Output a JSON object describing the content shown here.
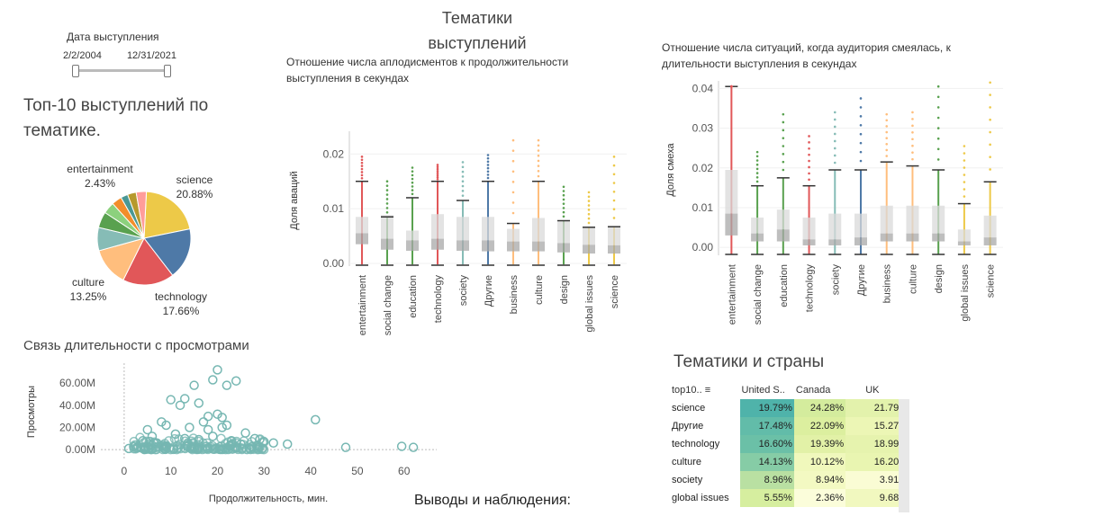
{
  "header": {
    "title": "Тематики выступлений"
  },
  "date_filter": {
    "title": "Дата выступления",
    "from": "2/2/2004",
    "to": "12/31/2021"
  },
  "pie": {
    "title": "Топ-10 выступлений по тематике.",
    "labels": [
      {
        "name": "entertainment",
        "pct": "2.43%"
      },
      {
        "name": "science",
        "pct": "20.88%"
      },
      {
        "name": "culture",
        "pct": "13.25%"
      },
      {
        "name": "technology",
        "pct": "17.66%"
      }
    ],
    "chart_data": {
      "type": "pie",
      "slices": [
        {
          "label": "science",
          "value": 20.88,
          "color": "#EDC948"
        },
        {
          "label": "Другие",
          "value": 17.66,
          "color": "#4E79A7"
        },
        {
          "label": "technology",
          "value": 17.66,
          "color": "#E15759"
        },
        {
          "label": "culture",
          "value": 13.25,
          "color": "#FFBE7D"
        },
        {
          "label": "society",
          "value": 8.0,
          "color": "#86BCB6"
        },
        {
          "label": "global issues",
          "value": 5.5,
          "color": "#59A14F"
        },
        {
          "label": "education",
          "value": 4.0,
          "color": "#8CD17D"
        },
        {
          "label": "design",
          "value": 3.5,
          "color": "#F28E2B"
        },
        {
          "label": "entertainment",
          "value": 2.43,
          "color": "#499894"
        },
        {
          "label": "business",
          "value": 3.0,
          "color": "#B6992D"
        },
        {
          "label": "social change",
          "value": 3.5,
          "color": "#FF9D9A"
        }
      ]
    }
  },
  "applause": {
    "title": "Отношение числа аплодисментов к продолжительности выступления в секундах",
    "ylabel": "Доля аваций",
    "chart_data": {
      "type": "box",
      "yticks": [
        "0.00",
        "0.01",
        "0.02"
      ],
      "ylim": [
        -0.0005,
        0.0235
      ],
      "categories": [
        "entertainment",
        "social change",
        "education",
        "technology",
        "society",
        "Другие",
        "business",
        "culture",
        "design",
        "global issues",
        "science"
      ],
      "colors": [
        "#E15759",
        "#59A14F",
        "#59A14F",
        "#E15759",
        "#86BCB6",
        "#4E79A7",
        "#FFBE7D",
        "#FFBE7D",
        "#59A14F",
        "#EDC948",
        "#EDC948"
      ],
      "q1": [
        0.0035,
        0.0025,
        0.0023,
        0.0025,
        0.0023,
        0.0022,
        0.0022,
        0.0022,
        0.002,
        0.0018,
        0.0018
      ],
      "median": [
        0.0055,
        0.0045,
        0.0042,
        0.0045,
        0.0042,
        0.0042,
        0.004,
        0.004,
        0.0037,
        0.0034,
        0.0033
      ],
      "q3": [
        0.0085,
        0.0088,
        0.006,
        0.009,
        0.0085,
        0.0085,
        0.0063,
        0.0083,
        0.0077,
        0.0065,
        0.0066
      ],
      "upper": [
        0.015,
        0.0085,
        0.012,
        0.015,
        0.0115,
        0.015,
        0.0073,
        0.015,
        0.0078,
        0.0066,
        0.0067
      ],
      "outmax": [
        0.0195,
        0.015,
        0.0175,
        0.018,
        0.0185,
        0.0198,
        0.0225,
        0.0225,
        0.014,
        0.013,
        0.0195
      ]
    }
  },
  "laughter": {
    "title": "Отношение числа ситуаций, когда аудитория смеялась, к длительности выступления в секундах",
    "ylabel": "Доля смеха",
    "chart_data": {
      "type": "box",
      "yticks": [
        "0.00",
        "0.01",
        "0.02",
        "0.03",
        "0.04"
      ],
      "ylim": [
        -0.002,
        0.041
      ],
      "categories": [
        "entertainment",
        "social change",
        "education",
        "technology",
        "society",
        "Другие",
        "business",
        "culture",
        "design",
        "global issues",
        "science"
      ],
      "colors": [
        "#E15759",
        "#59A14F",
        "#59A14F",
        "#E15759",
        "#86BCB6",
        "#4E79A7",
        "#FFBE7D",
        "#FFBE7D",
        "#59A14F",
        "#EDC948",
        "#EDC948"
      ],
      "q1": [
        0.003,
        0.0015,
        0.0015,
        0.0005,
        0.0005,
        0.0005,
        0.0015,
        0.0015,
        0.0015,
        0.0005,
        0.0005
      ],
      "median": [
        0.0085,
        0.0035,
        0.0045,
        0.002,
        0.002,
        0.0025,
        0.0035,
        0.0035,
        0.0035,
        0.0015,
        0.0025
      ],
      "q3": [
        0.0195,
        0.0075,
        0.0095,
        0.0075,
        0.0085,
        0.0085,
        0.0105,
        0.0105,
        0.0105,
        0.0045,
        0.008
      ],
      "upper": [
        0.0405,
        0.0155,
        0.0175,
        0.0155,
        0.0195,
        0.0195,
        0.0215,
        0.0205,
        0.0195,
        0.011,
        0.0165
      ],
      "outmax": [
        0.0405,
        0.024,
        0.0335,
        0.028,
        0.034,
        0.0375,
        0.0335,
        0.034,
        0.0405,
        0.0255,
        0.0415
      ]
    }
  },
  "scatter": {
    "title": "Связь длительности с просмотрами",
    "xlabel": "Продолжительность, мин.",
    "ylabel": "Просмотры",
    "chart_data": {
      "type": "scatter",
      "xticks": [
        0,
        10,
        20,
        30,
        40,
        50,
        60
      ],
      "yticks": [
        "0.00M",
        "20.00M",
        "40.00M",
        "60.00M"
      ],
      "xlim": [
        -5,
        67
      ],
      "ylim": [
        -8,
        78
      ],
      "points": [
        [
          20,
          72
        ],
        [
          19,
          63
        ],
        [
          15,
          58
        ],
        [
          10,
          45
        ],
        [
          13,
          46
        ],
        [
          12,
          40
        ],
        [
          22,
          58
        ],
        [
          24,
          62
        ],
        [
          16,
          42
        ],
        [
          18,
          30
        ],
        [
          8,
          25
        ],
        [
          20,
          32
        ],
        [
          21,
          29
        ],
        [
          41,
          27
        ],
        [
          35,
          5
        ],
        [
          30,
          7
        ],
        [
          47.5,
          2
        ],
        [
          59.5,
          3
        ],
        [
          62,
          2
        ],
        [
          5,
          18
        ],
        [
          9,
          22
        ],
        [
          14,
          20
        ],
        [
          17,
          25
        ],
        [
          22,
          22
        ],
        [
          26,
          15
        ],
        [
          28,
          10
        ],
        [
          32,
          6
        ],
        [
          4,
          8
        ],
        [
          6,
          12
        ],
        [
          11,
          14
        ],
        [
          7,
          6
        ],
        [
          13,
          10
        ],
        [
          16,
          9
        ],
        [
          19,
          12
        ],
        [
          23,
          8
        ],
        [
          25,
          5
        ],
        [
          3,
          3
        ],
        [
          1,
          1
        ],
        [
          18,
          18
        ],
        [
          21,
          20
        ]
      ]
    }
  },
  "heatmap": {
    "title": "Тематики и страны",
    "corner": "top10..",
    "columns": [
      "United S..",
      "Canada",
      "UK"
    ],
    "rows": [
      {
        "label": "science",
        "values": [
          "19.79%",
          "24.28%",
          "21.79%"
        ],
        "colors": [
          "#4fb3aa",
          "#d4ec9d",
          "#e3f2ac"
        ]
      },
      {
        "label": "Другие",
        "values": [
          "17.48%",
          "22.09%",
          "15.27%"
        ],
        "colors": [
          "#62bca9",
          "#dcef9f",
          "#ecf6b5"
        ]
      },
      {
        "label": "technology",
        "values": [
          "16.60%",
          "19.39%",
          "18.99%"
        ],
        "colors": [
          "#6bc0a7",
          "#e2f1a7",
          "#e6f3ae"
        ]
      },
      {
        "label": "culture",
        "values": [
          "14.13%",
          "10.12%",
          "16.20%"
        ],
        "colors": [
          "#86cca6",
          "#f0f8bc",
          "#e9f5b1"
        ]
      },
      {
        "label": "society",
        "values": [
          "8.96%",
          "8.94%",
          "3.91%"
        ],
        "colors": [
          "#b9e0a2",
          "#f3f9c2",
          "#fafcd4"
        ]
      },
      {
        "label": "global issues",
        "values": [
          "5.55%",
          "2.36%",
          "9.68%"
        ],
        "colors": [
          "#d6ee9f",
          "#fbfdda",
          "#f1f8bf"
        ]
      }
    ]
  },
  "conclusions": {
    "title": "Выводы и наблюдения:"
  }
}
